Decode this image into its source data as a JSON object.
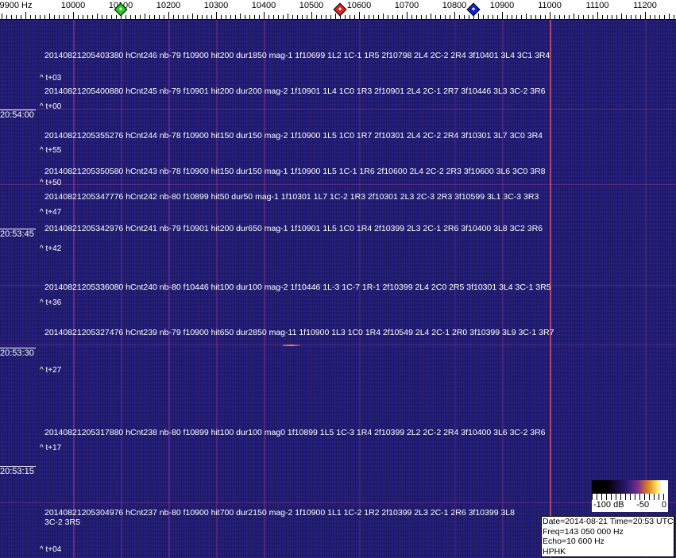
{
  "frequency_axis": {
    "unit_label": "9900 Hz",
    "labels": [
      "9900 Hz",
      "10000",
      "10100",
      "10200",
      "10300",
      "10400",
      "10500",
      "10600",
      "10700",
      "10800",
      "10900",
      "11000",
      "11100",
      "11200"
    ],
    "values": [
      9900,
      10000,
      10100,
      10200,
      10300,
      10400,
      10500,
      10600,
      10700,
      10800,
      10900,
      11000,
      11100,
      11200
    ]
  },
  "markers": [
    {
      "name": "green-marker",
      "freq": 10100,
      "color": "#22cc22"
    },
    {
      "name": "red-marker",
      "freq": 10560,
      "color": "#dd2222"
    },
    {
      "name": "blue-marker",
      "freq": 10840,
      "color": "#1122cc"
    }
  ],
  "colors": {
    "background": "#221d74",
    "signal": "#be3c8c"
  },
  "detections": [
    "20140821205403380 hCnt246 nb-79 f10900 hit200 dur1850 mag-1 1f10699 1L2 1C-1 1R5 2f10798 2L4 2C-2 2R4 3f10401 3L4 3C1 3R4",
    "20140821205400880 hCnt245 nb-79 f10901 hit200 dur200 mag-2 1f10901 1L4 1C0 1R3 2f10901 2L4 2C-1 2R7 3f10446 3L3 3C-2 3R6",
    "20140821205355276 hCnt244 nb-78 f10900 hit150 dur150 mag-2 1f10900 1L5 1C0 1R7 2f10301 2L4 2C-2 2R4 3f10301 3L7 3C0 3R4",
    "20140821205350580 hCnt243 nb-78 f10900 hit150 dur150 mag-1 1f10900 1L5 1C-1 1R6 2f10600 2L4 2C-2 2R3 3f10600 3L6 3C0 3R8",
    "20140821205347776 hCnt242 nb-80 f10899 hit50 dur50 mag-1 1f10301 1L7 1C-2 1R3 2f10301 2L3 2C-3 2R3 3f10599 3L1 3C-3 3R3",
    "20140821205342976 hCnt241 nb-79 f10901 hit200 dur650 mag-1 1f10901 1L5 1C0 1R4 2f10399 2L3 2C-1 2R6 3f10400 3L8 3C2 3R6",
    "20140821205336080 hCnt240 nb-80 f10446 hit100 dur100 mag-2 1f10446 1L-3 1C-7 1R-1 2f10399 2L4 2C0 2R5 3f10301 3L4 3C-1 3R5",
    "20140821205327476 hCnt239 nb-79 f10900 hit650 dur2850 mag-11 1f10900 1L3 1C0 1R4 2f10549 2L4 2C-1 2R0 3f10399 3L9 3C-1 3R7",
    "20140821205317880 hCnt238 nb-80 f10899 hit100 dur100 mag0 1f10899 1L5 1C-3 1R4 2f10399 2L2 2C-2 2R4 3f10400 3L6 3C-2 3R6",
    "20140821205304976 hCnt237 nb-80 f10900 hit700 dur2150 mag-2 1f10900 1L1 1C-2 1R2 2f10399 2L3 2C-1 2R6 3f10399 3L8 3C-2 3R5"
  ],
  "time_offsets": [
    "^ t+03",
    "^ t+00",
    "^ t+55",
    "^ t+50",
    "^ t+47",
    "^ t+42",
    "^ t+36",
    "^ t+27",
    "^ t+17",
    "^ t+04"
  ],
  "time_labels": [
    "20:54:00",
    "20:53:45",
    "20:53:30",
    "20:53:15"
  ],
  "colorbar": {
    "labels": [
      "-100 dB",
      "-50",
      "0"
    ]
  },
  "info": {
    "date_time": "Date=2014-08-21 Time=20:53 UTC",
    "freq": "Freq=143 050 000 Hz",
    "echo": "Echo=10 600 Hz",
    "station": "HPHK"
  }
}
